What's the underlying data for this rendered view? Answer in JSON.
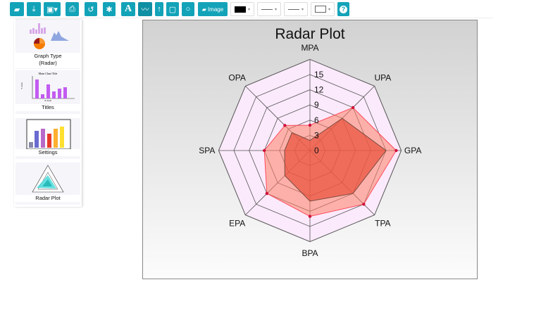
{
  "toolbar": {
    "buttons": [
      {
        "icon": "folder-open-icon"
      },
      {
        "icon": "download-icon"
      },
      {
        "icon": "image-export-icon"
      },
      {
        "icon": "print-icon"
      },
      {
        "icon": "undo-icon"
      },
      {
        "icon": "gear-icon"
      },
      {
        "icon": "text-icon",
        "glyph": "A"
      },
      {
        "icon": "line-icon"
      },
      {
        "icon": "arrow-up-icon"
      },
      {
        "icon": "square-icon"
      },
      {
        "icon": "circle-icon"
      }
    ],
    "image_label": "Image",
    "color": "#000000",
    "help_glyph": "?"
  },
  "sidebar": {
    "items": [
      {
        "label": "Graph Type",
        "sub": "(Radar)"
      },
      {
        "label": "Titles",
        "thumb_title": "Main Chart Title",
        "thumb_x": "X Axis",
        "thumb_y": "Y Axis"
      },
      {
        "label": "Settings"
      },
      {
        "label": "Radar Plot"
      }
    ]
  },
  "chart_data": {
    "type": "radar",
    "title": "Radar Plot",
    "categories": [
      "MPA",
      "UPA",
      "GPA",
      "TPA",
      "BPA",
      "EPA",
      "SPA",
      "OPA"
    ],
    "ticks": [
      0,
      3,
      6,
      9,
      12,
      15
    ],
    "range": [
      0,
      18
    ],
    "series": [
      {
        "values": [
          5,
          12,
          17,
          15,
          13,
          12,
          9,
          7
        ],
        "color": "#ff7f66"
      },
      {
        "values": [
          2,
          9,
          15,
          12,
          10,
          7,
          5,
          5
        ],
        "color": "#e8503a"
      }
    ],
    "grid_fill": "#fbeafb",
    "marker_color": "#d0103a"
  }
}
